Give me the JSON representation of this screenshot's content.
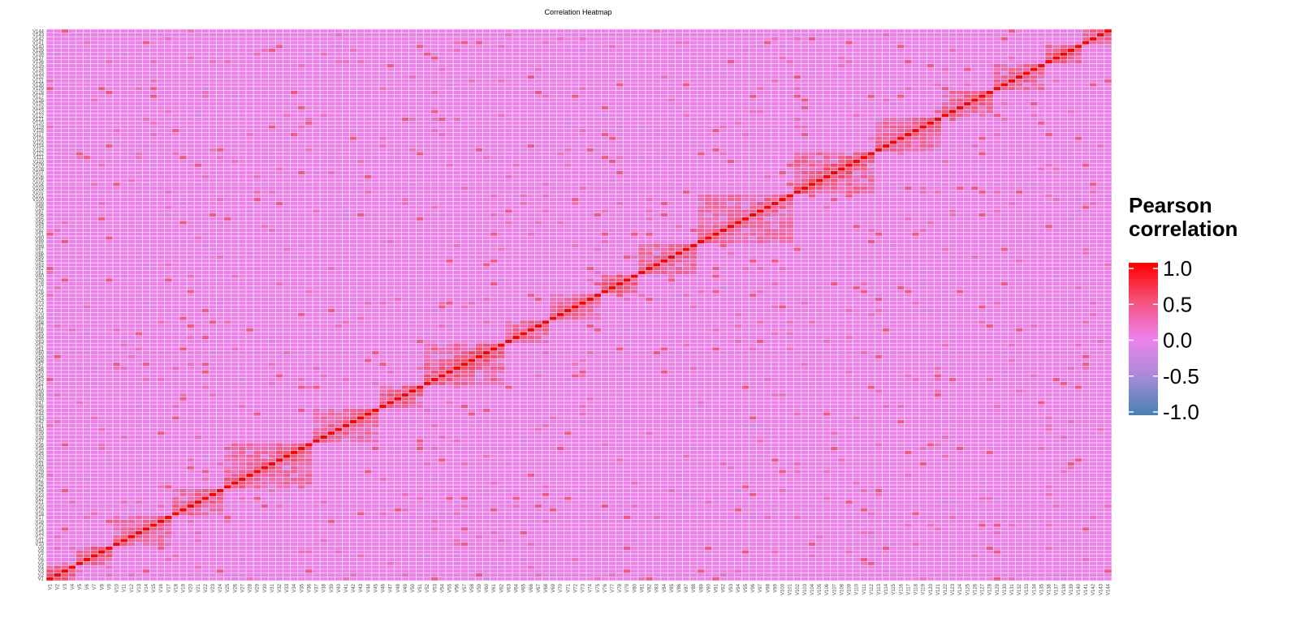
{
  "chart_data": {
    "type": "heatmap",
    "title": "Correlation Heatmap",
    "xlabel": "",
    "ylabel": "",
    "variables_count": 144,
    "variable_prefix": "V",
    "value_range": [
      -1,
      1
    ],
    "legend": {
      "title_lines": [
        "Pearson",
        "correlation"
      ],
      "ticks": [
        1.0,
        0.5,
        0.0,
        -0.5,
        -1.0
      ],
      "tick_labels": [
        "1.0",
        "0.5",
        "0.0",
        "-0.5",
        "-1.0"
      ],
      "placement": "right"
    },
    "colorscale": [
      {
        "value": -1.0,
        "color": "#4682b4"
      },
      {
        "value": -0.5,
        "color": "#a68bd6"
      },
      {
        "value": 0.0,
        "color": "#ee82ee"
      },
      {
        "value": 0.5,
        "color": "#f4517a"
      },
      {
        "value": 1.0,
        "color": "#ff0000"
      }
    ],
    "cell_border_color": "#ffffff",
    "diagonal_value": 1.0,
    "background_value": 0.02,
    "block_structure": [
      {
        "start": 1,
        "end": 4,
        "value": 0.6
      },
      {
        "start": 5,
        "end": 9,
        "value": 0.55
      },
      {
        "start": 10,
        "end": 17,
        "value": 0.5
      },
      {
        "start": 18,
        "end": 24,
        "value": 0.5
      },
      {
        "start": 25,
        "end": 36,
        "value": 0.55
      },
      {
        "start": 37,
        "end": 45,
        "value": 0.5
      },
      {
        "start": 46,
        "end": 51,
        "value": 0.55
      },
      {
        "start": 52,
        "end": 62,
        "value": 0.6
      },
      {
        "start": 63,
        "end": 68,
        "value": 0.5
      },
      {
        "start": 69,
        "end": 75,
        "value": 0.5
      },
      {
        "start": 76,
        "end": 80,
        "value": 0.55
      },
      {
        "start": 81,
        "end": 88,
        "value": 0.55
      },
      {
        "start": 89,
        "end": 101,
        "value": 0.5
      },
      {
        "start": 102,
        "end": 112,
        "value": 0.6
      },
      {
        "start": 113,
        "end": 121,
        "value": 0.55
      },
      {
        "start": 122,
        "end": 128,
        "value": 0.55
      },
      {
        "start": 129,
        "end": 135,
        "value": 0.55
      },
      {
        "start": 136,
        "end": 140,
        "value": 0.6
      },
      {
        "start": 141,
        "end": 144,
        "value": 0.55
      }
    ]
  }
}
